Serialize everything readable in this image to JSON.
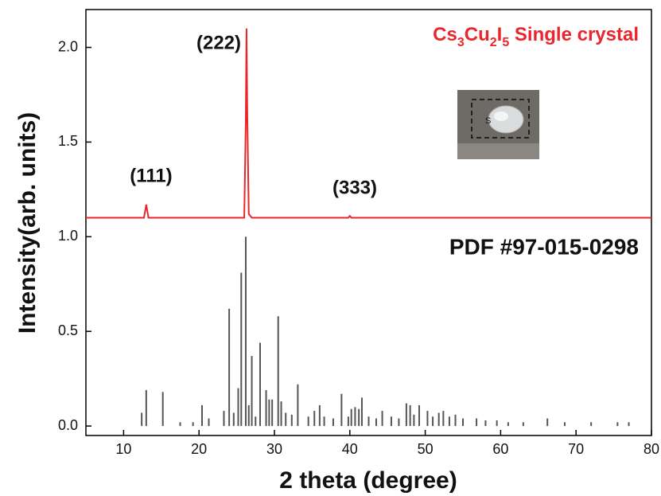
{
  "chart_data": {
    "type": "line",
    "xlabel": "2 theta (degree)",
    "ylabel": "Intensity(arb. units)",
    "xlim": [
      5,
      80
    ],
    "ylim": [
      -0.05,
      2.2
    ],
    "xticks": [
      10,
      20,
      30,
      40,
      50,
      60,
      70,
      80
    ],
    "yticks": [
      {
        "value": 0,
        "label": "0.0"
      },
      0.5,
      {
        "value": 1,
        "label": "1.0"
      },
      1.5,
      {
        "value": 2,
        "label": "2.0"
      }
    ],
    "annotations": [
      "(111)",
      "(222)",
      "(333)"
    ],
    "series": [
      {
        "name": "Cs3Cu2I5 Single crystal",
        "type": "line",
        "color": "#e8262b",
        "x": [
          5,
          12.7,
          13.0,
          13.3,
          26.0,
          26.2,
          26.3,
          26.4,
          26.6,
          27.0,
          39.8,
          40.0,
          40.2,
          80
        ],
        "values": [
          1.1,
          1.1,
          1.17,
          1.1,
          1.1,
          1.6,
          2.1,
          1.65,
          1.12,
          1.1,
          1.1,
          1.11,
          1.1,
          1.1
        ]
      },
      {
        "name": "PDF #97-015-0298",
        "type": "stem",
        "color": "#555555",
        "x": [
          12.4,
          13.0,
          15.2,
          17.5,
          19.2,
          20.4,
          21.3,
          23.3,
          24.0,
          24.6,
          25.2,
          25.6,
          26.2,
          26.6,
          27.0,
          27.5,
          28.1,
          28.9,
          29.3,
          29.7,
          30.5,
          30.9,
          31.5,
          32.3,
          33.1,
          34.5,
          35.3,
          36.0,
          36.6,
          37.8,
          38.9,
          39.8,
          40.2,
          40.7,
          41.2,
          41.6,
          42.5,
          43.5,
          44.3,
          45.5,
          46.5,
          47.5,
          48.0,
          48.5,
          49.2,
          50.3,
          51.0,
          51.8,
          52.4,
          53.2,
          54.0,
          55.0,
          56.8,
          58.0,
          59.5,
          61.0,
          63.0,
          66.2,
          68.5,
          72.0,
          75.5,
          77.0
        ],
        "values": [
          0.07,
          0.19,
          0.18,
          0.02,
          0.02,
          0.11,
          0.04,
          0.08,
          0.62,
          0.07,
          0.2,
          0.81,
          1.0,
          0.11,
          0.37,
          0.05,
          0.44,
          0.19,
          0.14,
          0.14,
          0.58,
          0.13,
          0.07,
          0.06,
          0.22,
          0.05,
          0.08,
          0.11,
          0.05,
          0.04,
          0.17,
          0.05,
          0.09,
          0.1,
          0.09,
          0.15,
          0.05,
          0.04,
          0.08,
          0.05,
          0.04,
          0.12,
          0.11,
          0.06,
          0.11,
          0.08,
          0.05,
          0.07,
          0.08,
          0.05,
          0.06,
          0.04,
          0.04,
          0.03,
          0.03,
          0.02,
          0.02,
          0.04,
          0.02,
          0.02,
          0.02,
          0.02
        ]
      }
    ]
  }
}
